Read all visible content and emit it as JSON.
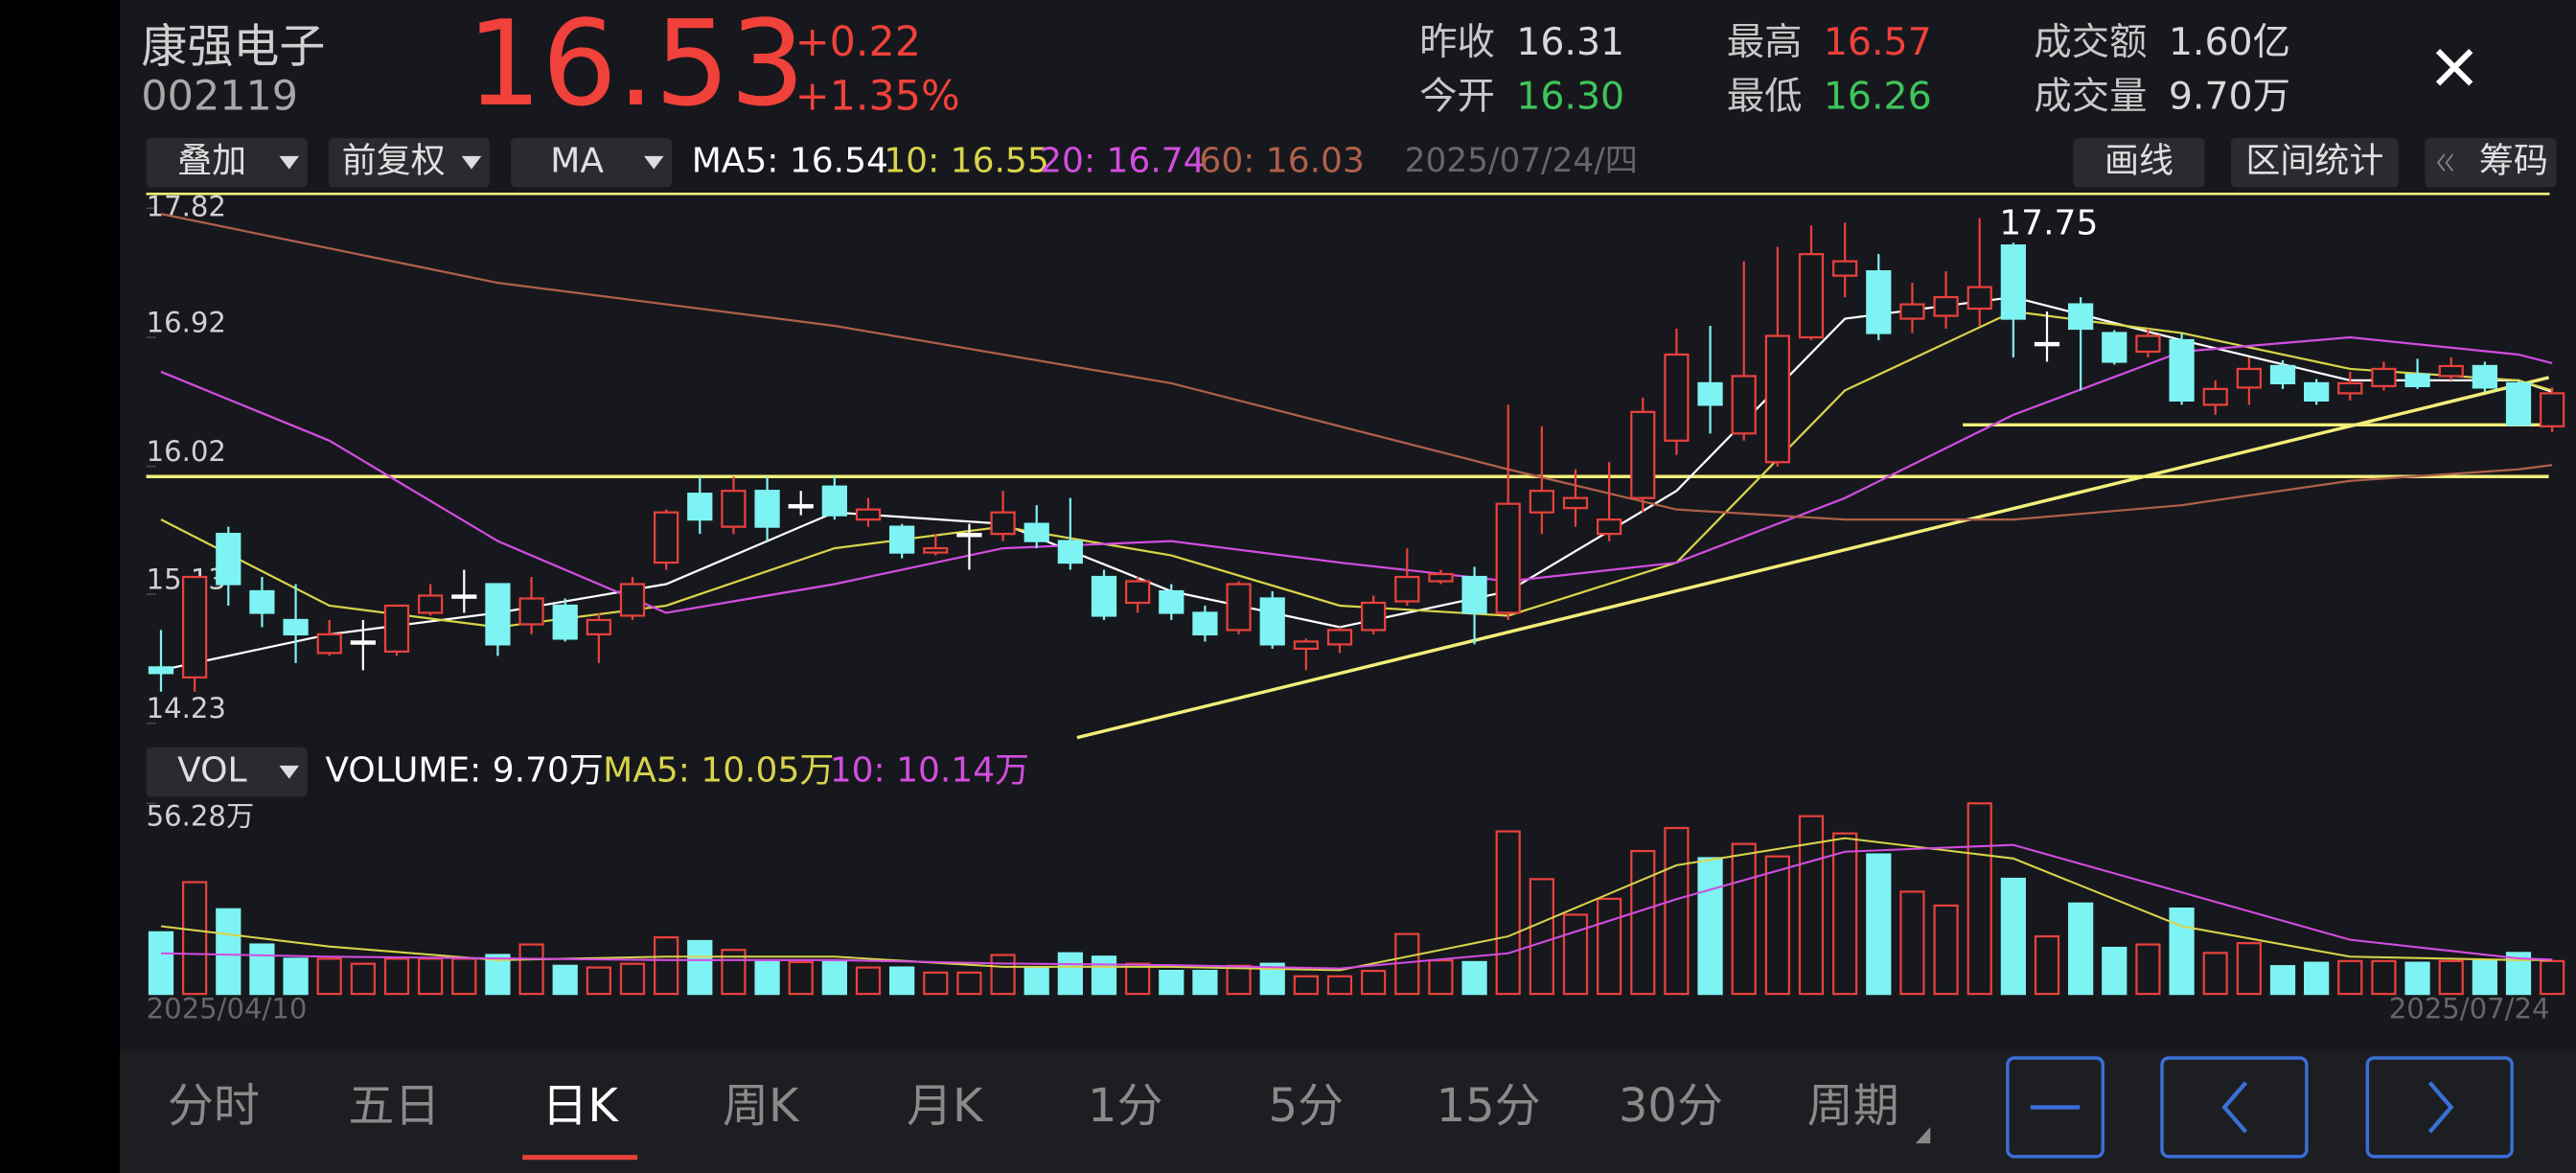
{
  "header": {
    "name": "康强电子",
    "code": "002119",
    "price": "16.53",
    "change": "+0.22",
    "change_pct": "+1.35%",
    "stats": [
      {
        "label": "昨收",
        "value": "16.31"
      },
      {
        "label": "今开",
        "value": "16.30"
      },
      {
        "label": "最高",
        "value": "16.57"
      },
      {
        "label": "最低",
        "value": "16.26"
      },
      {
        "label": "成交额",
        "value": "1.60亿"
      },
      {
        "label": "成交量",
        "value": "9.70万"
      }
    ]
  },
  "toolbar": {
    "overlay": "叠加",
    "adjust": "前复权",
    "indicator": "MA",
    "date": "2025/07/24/四",
    "buttons": [
      "画线",
      "区间统计",
      "筹码"
    ]
  },
  "volume_toolbar": {
    "indicator": "VOL"
  },
  "tabs": [
    "分时",
    "五日",
    "日K",
    "周K",
    "月K",
    "1分",
    "5分",
    "15分",
    "30分",
    "周期"
  ],
  "chart_data": [
    {
      "type": "candlestick",
      "up_color": "#e8413c",
      "down_color": "#7ef3f3",
      "ylim": [
        14.13,
        17.92
      ],
      "yticks": [
        17.82,
        16.92,
        16.02,
        15.13,
        14.23
      ],
      "max_label": "17.75",
      "open": [
        14.62,
        14.55,
        15.55,
        15.15,
        14.95,
        14.72,
        14.8,
        14.73,
        15.0,
        15.12,
        15.2,
        14.92,
        15.05,
        14.85,
        14.98,
        15.35,
        15.83,
        15.6,
        15.85,
        15.75,
        15.88,
        15.65,
        15.6,
        15.42,
        15.55,
        15.55,
        15.62,
        15.5,
        15.25,
        15.07,
        15.15,
        15.0,
        14.88,
        15.1,
        14.75,
        14.78,
        14.88,
        15.08,
        15.22,
        15.25,
        15.0,
        15.7,
        15.73,
        15.55,
        15.8,
        16.2,
        16.6,
        16.25,
        16.05,
        16.92,
        17.35,
        17.38,
        17.05,
        17.07,
        17.12,
        17.56,
        16.88,
        17.15,
        16.95,
        16.82,
        16.9,
        16.45,
        16.57,
        16.72,
        16.6,
        16.53,
        16.58,
        16.66,
        16.65,
        16.72,
        16.6,
        16.3
      ],
      "high": [
        14.88,
        15.25,
        15.6,
        15.25,
        15.2,
        14.95,
        14.95,
        15.05,
        15.2,
        15.3,
        15.2,
        15.25,
        15.1,
        15.0,
        15.25,
        15.72,
        15.95,
        15.95,
        15.95,
        15.85,
        15.95,
        15.8,
        15.62,
        15.55,
        15.62,
        15.85,
        15.75,
        15.8,
        15.3,
        15.25,
        15.2,
        15.05,
        15.22,
        15.15,
        14.82,
        14.9,
        15.12,
        15.45,
        15.3,
        15.32,
        16.45,
        16.3,
        16.0,
        16.05,
        16.5,
        16.98,
        17.0,
        17.45,
        17.55,
        17.7,
        17.72,
        17.5,
        17.3,
        17.38,
        17.75,
        17.58,
        17.1,
        17.2,
        16.97,
        16.98,
        16.95,
        16.62,
        16.78,
        16.76,
        16.63,
        16.68,
        16.75,
        16.77,
        16.78,
        16.75,
        16.62,
        16.57
      ],
      "low": [
        14.45,
        14.45,
        15.05,
        14.9,
        14.65,
        14.7,
        14.6,
        14.7,
        14.98,
        15.0,
        14.7,
        14.85,
        14.8,
        14.65,
        14.95,
        15.3,
        15.55,
        15.55,
        15.5,
        15.68,
        15.65,
        15.6,
        15.38,
        15.4,
        15.3,
        15.5,
        15.45,
        15.3,
        14.95,
        15.0,
        14.95,
        14.8,
        14.85,
        14.75,
        14.6,
        14.72,
        14.85,
        15.05,
        15.2,
        14.78,
        14.95,
        15.55,
        15.6,
        15.5,
        15.7,
        16.1,
        16.25,
        16.2,
        16.02,
        16.9,
        17.2,
        16.9,
        16.95,
        16.98,
        17.0,
        16.78,
        16.75,
        16.55,
        16.73,
        16.78,
        16.45,
        16.38,
        16.45,
        16.56,
        16.45,
        16.48,
        16.55,
        16.56,
        16.62,
        16.54,
        16.3,
        16.26
      ],
      "close": [
        14.58,
        15.25,
        15.2,
        15.0,
        14.85,
        14.85,
        14.8,
        15.05,
        15.12,
        15.12,
        14.78,
        15.1,
        14.82,
        14.95,
        15.2,
        15.7,
        15.65,
        15.85,
        15.6,
        15.75,
        15.68,
        15.72,
        15.42,
        15.45,
        15.55,
        15.7,
        15.5,
        15.35,
        14.98,
        15.22,
        15.0,
        14.85,
        15.2,
        14.78,
        14.8,
        14.88,
        15.07,
        15.25,
        15.27,
        15.0,
        15.76,
        15.85,
        15.8,
        15.65,
        16.4,
        16.8,
        16.45,
        16.65,
        16.93,
        17.5,
        17.45,
        16.95,
        17.15,
        17.2,
        17.27,
        17.05,
        16.88,
        16.98,
        16.75,
        16.93,
        16.48,
        16.56,
        16.7,
        16.6,
        16.48,
        16.6,
        16.7,
        16.58,
        16.72,
        16.57,
        16.31,
        16.53
      ],
      "series": [
        {
          "name": "MA5: 16.54",
          "color": "#ffffff",
          "x": [
            0,
            5,
            10,
            15,
            20,
            25,
            30,
            35,
            40,
            45,
            50,
            55,
            60,
            65,
            70,
            71
          ],
          "values": [
            14.6,
            14.85,
            15.0,
            15.2,
            15.7,
            15.62,
            15.15,
            14.9,
            15.15,
            15.85,
            17.05,
            17.2,
            16.9,
            16.62,
            16.62,
            16.54
          ]
        },
        {
          "name": "10: 16.55",
          "color": "#d8d44a",
          "x": [
            0,
            5,
            10,
            15,
            20,
            25,
            30,
            35,
            40,
            45,
            50,
            55,
            60,
            65,
            70,
            71
          ],
          "values": [
            15.65,
            15.05,
            14.9,
            15.05,
            15.45,
            15.6,
            15.4,
            15.05,
            14.98,
            15.35,
            16.55,
            17.1,
            16.95,
            16.7,
            16.62,
            16.55
          ]
        },
        {
          "name": "20: 16.74",
          "color": "#d24de0",
          "x": [
            0,
            5,
            10,
            15,
            20,
            25,
            30,
            35,
            40,
            45,
            50,
            55,
            60,
            65,
            70,
            71
          ],
          "values": [
            16.68,
            16.2,
            15.5,
            15.0,
            15.2,
            15.45,
            15.5,
            15.35,
            15.22,
            15.35,
            15.8,
            16.38,
            16.82,
            16.92,
            16.8,
            16.74
          ]
        },
        {
          "name": "60: 16.03",
          "color": "#b0604a",
          "x": [
            0,
            10,
            20,
            30,
            40,
            45,
            50,
            55,
            60,
            65,
            70,
            71
          ],
          "values": [
            17.78,
            17.3,
            17.0,
            16.6,
            16.0,
            15.72,
            15.65,
            15.65,
            15.75,
            15.92,
            16.0,
            16.03
          ]
        }
      ],
      "drawn_lines": [
        {
          "color": "#f2ee7a",
          "x": [
            53.5,
            70.9
          ],
          "values": [
            16.31,
            16.31
          ]
        },
        {
          "color": "#f2ee7a",
          "x": [
            -0.44,
            70.9
          ],
          "values": [
            15.95,
            15.95
          ]
        },
        {
          "color": "#f2ee7a",
          "x": [
            27.2,
            70.9
          ],
          "values": [
            14.13,
            16.64
          ]
        }
      ]
    },
    {
      "type": "bar",
      "ylim": [
        0,
        56.28
      ],
      "yticks": [
        {
          "value": 56.28,
          "label": "56.28万"
        }
      ],
      "categories": [
        "2025/04/10",
        null,
        null,
        null,
        null,
        null,
        null,
        null,
        null,
        null,
        null,
        null,
        null,
        null,
        null,
        null,
        null,
        null,
        null,
        null,
        null,
        null,
        null,
        null,
        null,
        null,
        null,
        null,
        null,
        null,
        null,
        null,
        null,
        null,
        null,
        null,
        null,
        null,
        null,
        null,
        null,
        null,
        null,
        null,
        null,
        null,
        null,
        null,
        null,
        null,
        null,
        null,
        null,
        null,
        null,
        null,
        null,
        null,
        null,
        null,
        null,
        null,
        null,
        null,
        null,
        null,
        null,
        null,
        null,
        null,
        null,
        "2025/07/24"
      ],
      "series": [
        {
          "name": "VOLUME: 9.70万",
          "color": "#ffffff",
          "values": [
            18.2,
            33,
            25,
            14.6,
            10.4,
            10.4,
            8.9,
            10.4,
            10.4,
            10.4,
            11.5,
            14.6,
            8.3,
            7.8,
            8.9,
            16.7,
            15.6,
            13,
            9.4,
            9.4,
            9.4,
            7.8,
            7.8,
            6.3,
            6.3,
            11.5,
            7.8,
            12,
            11,
            8.9,
            6.8,
            6.8,
            8.3,
            8.9,
            5.2,
            5.2,
            6.8,
            17.7,
            9.9,
            9.4,
            48,
            33.9,
            23.4,
            28.1,
            42.2,
            49,
            40.1,
            44.3,
            40.6,
            52.5,
            47.4,
            41.2,
            30.2,
            26.1,
            56.28,
            34,
            17,
            26.7,
            13.6,
            14.6,
            25.2,
            12.1,
            15,
            8.2,
            9.2,
            9.7,
            9.7,
            9.2,
            9.7,
            9.7,
            12.1,
            9.7
          ]
        },
        {
          "name": "MA5: 10.05万",
          "color": "#d8d44a",
          "x": [
            0,
            5,
            10,
            15,
            20,
            25,
            30,
            35,
            40,
            45,
            50,
            55,
            60,
            65,
            70,
            71
          ],
          "values": [
            20,
            14,
            10,
            11,
            11,
            8,
            8,
            7,
            17,
            38,
            46,
            40,
            20,
            11,
            10,
            10.05
          ]
        },
        {
          "name": "10: 10.14万",
          "color": "#d24de0",
          "x": [
            0,
            5,
            10,
            15,
            20,
            25,
            30,
            35,
            40,
            45,
            50,
            55,
            60,
            65,
            70,
            71
          ],
          "values": [
            12,
            11,
            10.5,
            10,
            10,
            9,
            8.5,
            7.5,
            12,
            28,
            42,
            44,
            30,
            16,
            10.5,
            10.14
          ]
        }
      ]
    }
  ]
}
